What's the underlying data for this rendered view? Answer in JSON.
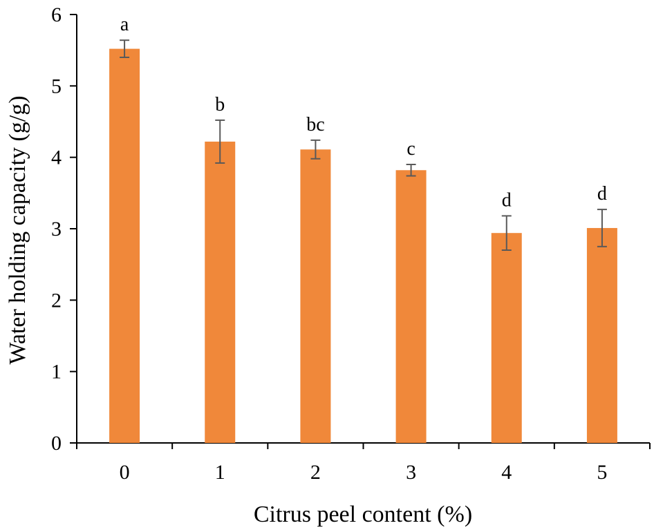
{
  "chart_data": {
    "type": "bar",
    "title": "",
    "xlabel": "Citrus peel content (%)",
    "ylabel": "Water holding capacity (g/g)",
    "categories": [
      "0",
      "1",
      "2",
      "3",
      "4",
      "5"
    ],
    "values": [
      5.52,
      4.22,
      4.11,
      3.82,
      2.94,
      3.01
    ],
    "errors": [
      0.12,
      0.3,
      0.13,
      0.08,
      0.24,
      0.26
    ],
    "significance_letters": [
      "a",
      "b",
      "bc",
      "c",
      "d",
      "d"
    ],
    "ylim": [
      0,
      6
    ],
    "yticks": [
      "0",
      "1",
      "2",
      "3",
      "4",
      "5",
      "6"
    ],
    "grid": false,
    "legend": "none",
    "colors": {
      "bar": "#f0883a",
      "error_bar": "#595959",
      "axis": "#000000"
    }
  }
}
